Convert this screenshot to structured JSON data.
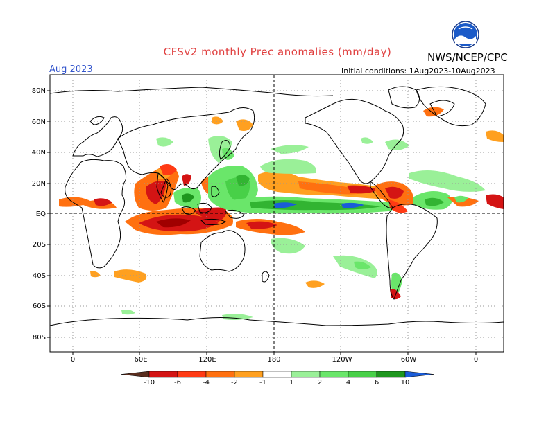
{
  "title": "CFSv2 monthly Prec anomalies (mm/day)",
  "forecast_month": "Aug 2023",
  "initial_conditions": "Initial conditions: 1Aug2023-10Aug2023",
  "agency": "NWS/NCEP/CPC",
  "logo_icon": "noaa-logo-icon",
  "colors": {
    "title": "#e04040",
    "month": "#3355cc",
    "dry": [
      "#5a2d1e",
      "#a00000",
      "#d41414",
      "#ff3a14",
      "#ff7010",
      "#ffa020"
    ],
    "wet": [
      "#9af098",
      "#6ae66a",
      "#48d048",
      "#32b432",
      "#1e961e",
      "#1a5cd8"
    ]
  },
  "map": {
    "lat_labels": [
      "80N",
      "60N",
      "40N",
      "20N",
      "EQ",
      "20S",
      "40S",
      "60S",
      "80S"
    ],
    "lon_labels": [
      "0",
      "60E",
      "120E",
      "180",
      "120W",
      "60W",
      "0"
    ]
  },
  "colorbar": {
    "labels": [
      "-10",
      "-6",
      "-4",
      "-2",
      "-1",
      "1",
      "2",
      "4",
      "6",
      "10"
    ]
  },
  "chart_data": {
    "type": "heatmap",
    "title": "CFSv2 monthly Prec anomalies (mm/day)",
    "subtitle": "Aug 2023",
    "initial_conditions": "Initial conditions: 1Aug2023-10Aug2023",
    "levels": [
      -10,
      -6,
      -4,
      -2,
      -1,
      1,
      2,
      4,
      6,
      10
    ],
    "lat_range": [
      -90,
      90
    ],
    "lon_range": [
      -20,
      380
    ],
    "grid": true,
    "anomaly_regions": [
      {
        "lon": 22,
        "lat": 8,
        "value": -3
      },
      {
        "lon": 75,
        "lat": 15,
        "value": -5
      },
      {
        "lon": 96,
        "lat": 20,
        "value": 3
      },
      {
        "lon": 90,
        "lat": -5,
        "value": -7
      },
      {
        "lon": 110,
        "lat": -2,
        "value": -4
      },
      {
        "lon": 145,
        "lat": 10,
        "value": 4
      },
      {
        "lon": 150,
        "lat": 28,
        "value": 3
      },
      {
        "lon": 175,
        "lat": 5,
        "value": 4
      },
      {
        "lon": 185,
        "lat": 7,
        "value": 8
      },
      {
        "lon": 205,
        "lat": 15,
        "value": -2
      },
      {
        "lon": 235,
        "lat": 10,
        "value": -3
      },
      {
        "lon": 255,
        "lat": 5,
        "value": 5
      },
      {
        "lon": 270,
        "lat": 12,
        "value": -5
      },
      {
        "lon": 290,
        "lat": 12,
        "value": -4
      },
      {
        "lon": 315,
        "lat": 10,
        "value": 3
      },
      {
        "lon": 340,
        "lat": 10,
        "value": -3
      },
      {
        "lon": 165,
        "lat": -8,
        "value": -3
      },
      {
        "lon": 178,
        "lat": -22,
        "value": 2
      },
      {
        "lon": 240,
        "lat": -35,
        "value": 2
      },
      {
        "lon": 65,
        "lat": -40,
        "value": -2
      }
    ]
  }
}
